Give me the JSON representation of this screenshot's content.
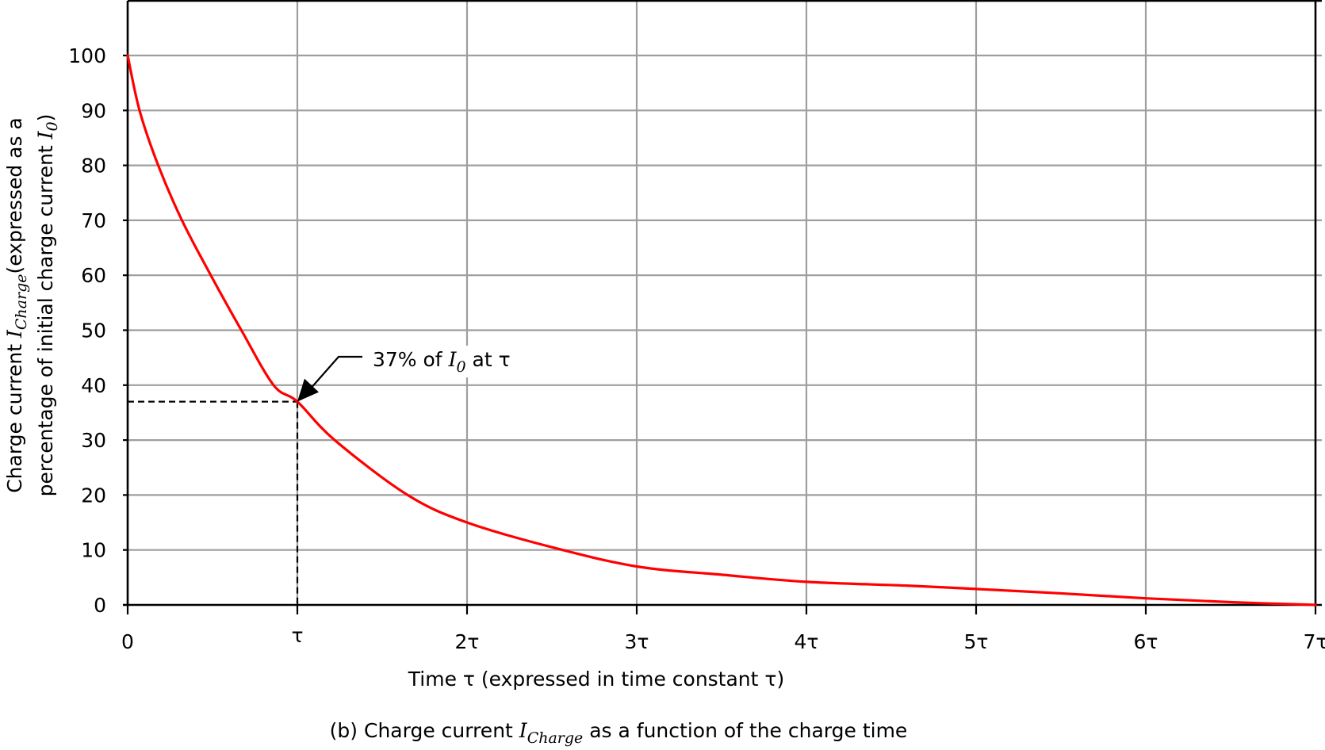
{
  "chart_data": {
    "type": "line",
    "title": "",
    "caption": {
      "prefix": "(b) Charge current ",
      "symbol": "I",
      "symbol_sub": "Charge",
      "suffix": " as a function of the charge time"
    },
    "xlabel": "Time τ (expressed in time constant τ)",
    "ylabel": {
      "line1_prefix": "Charge current ",
      "line1_symbol": "I",
      "line1_sub": "Charge",
      "line1_suffix": "(expressed as a",
      "line2_prefix": "percentage of initial charge current ",
      "line2_symbol": "I",
      "line2_sub": "0",
      "line2_suffix": ")"
    },
    "x_ticks": [
      "0",
      "τ",
      "2τ",
      "3τ",
      "4τ",
      "5τ",
      "6τ",
      "7τ"
    ],
    "y_ticks": [
      "0",
      "10",
      "20",
      "30",
      "40",
      "50",
      "60",
      "70",
      "80",
      "90",
      "100"
    ],
    "xlim": [
      0,
      7
    ],
    "ylim": [
      0,
      100
    ],
    "grid": true,
    "legend": null,
    "series": [
      {
        "name": "Charge current I_Charge (% of I0)",
        "color": "#ff0000",
        "x": [
          0,
          0.07,
          0.18,
          0.32,
          0.49,
          0.67,
          0.86,
          1.0,
          1.22,
          1.65,
          2.0,
          2.5,
          3.0,
          3.5,
          4.0,
          4.6,
          5.0,
          5.5,
          6.0,
          6.5,
          7.0
        ],
        "y": [
          100,
          90,
          80,
          70,
          60,
          50,
          40,
          37,
          30,
          20,
          15,
          10.5,
          7,
          5.5,
          4.2,
          3.5,
          2.9,
          2.1,
          1.2,
          0.5,
          0
        ]
      }
    ],
    "annotations": [
      {
        "text_prefix": "37% of ",
        "symbol": "I",
        "symbol_sub": "0",
        "text_suffix": " at τ",
        "points_to": {
          "x": 1,
          "y": 37
        },
        "guide_lines": "dashed horizontal from y-axis at 37 and dashed vertical down from x=τ"
      }
    ]
  },
  "colors": {
    "curve": "#ff0000",
    "grid": "#9e9e9e",
    "axis": "#000000",
    "background": "#ffffff"
  }
}
